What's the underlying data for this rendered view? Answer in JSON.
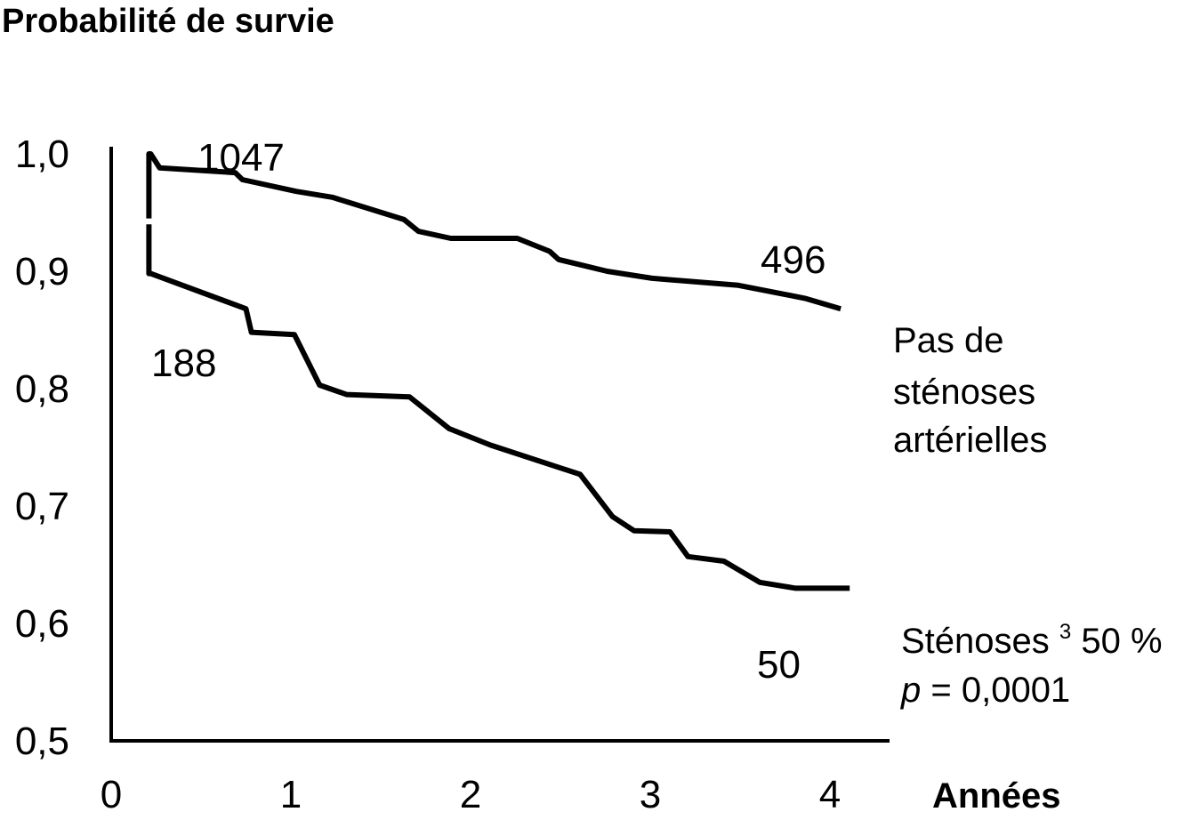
{
  "chart_data": {
    "type": "line",
    "title": "Probabilité de survie",
    "xlabel": "Années",
    "ylabel": "",
    "xlim": [
      0,
      4.3
    ],
    "ylim": [
      0.5,
      1.0
    ],
    "xticks": [
      "0",
      "1",
      "2",
      "3",
      "4"
    ],
    "yticks": [
      "1,0",
      "0,9",
      "0,8",
      "0,7",
      "0,6",
      "0,5"
    ],
    "grid": false,
    "line_color": "#000000",
    "series": [
      {
        "name": "Pas de sténoses artérielles",
        "x": [
          0.22,
          0.27,
          0.69,
          0.73,
          1.03,
          1.23,
          1.63,
          1.71,
          1.89,
          2.26,
          2.44,
          2.49,
          2.76,
          3.01,
          3.49,
          3.76,
          3.86,
          4.06
        ],
        "y": [
          1.0,
          0.988,
          0.984,
          0.978,
          0.968,
          0.963,
          0.944,
          0.934,
          0.928,
          0.928,
          0.917,
          0.91,
          0.9,
          0.894,
          0.888,
          0.88,
          0.877,
          0.868
        ]
      },
      {
        "name": "Sténoses ³ 50 %",
        "x": [
          0.22,
          0.75,
          0.78,
          1.02,
          1.16,
          1.31,
          1.66,
          1.88,
          2.11,
          2.61,
          2.79,
          2.91,
          3.11,
          3.21,
          3.41,
          3.61,
          3.81,
          4.11
        ],
        "y": [
          0.898,
          0.868,
          0.848,
          0.846,
          0.803,
          0.795,
          0.793,
          0.766,
          0.752,
          0.727,
          0.691,
          0.679,
          0.678,
          0.657,
          0.653,
          0.635,
          0.63,
          0.63
        ]
      }
    ],
    "annotations": {
      "top_start_count": "1047",
      "top_end_count": "496",
      "bottom_start_count": "188",
      "bottom_end_count": "50",
      "series1_label_line1": "Pas de",
      "series1_label_line2": "sténoses",
      "series1_label_line3": "artérielles",
      "series2_label_main": "Sténoses ",
      "series2_label_sup": "3",
      "series2_label_rest": " 50 %",
      "pvalue_p": "p",
      "pvalue_rest": " = 0,0001"
    }
  }
}
